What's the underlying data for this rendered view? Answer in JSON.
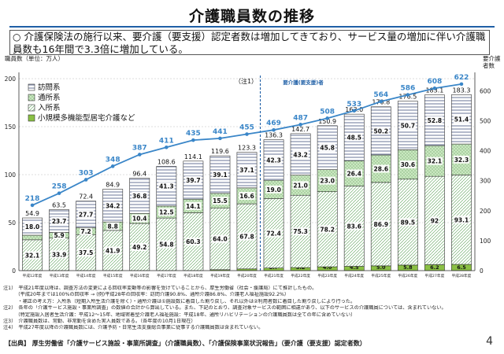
{
  "title": "介護職員数の推移",
  "summary": {
    "marker": "○",
    "text": "介護保険法の施行以来、要介護（要支援）認定者数は増加してきており、サービス量の増加に伴い介護職員数も16年間で3.3倍に増加している。"
  },
  "colors": {
    "accent": "#1f5fa6",
    "line": "#3a86c8",
    "visit": "#ffffff",
    "day": "#c9e8c0",
    "residential": "#ffffff",
    "small": "#8ac044"
  },
  "chart_data": {
    "type": "bar",
    "stacked": true,
    "title": "",
    "ylabel": "職員数（単位：万人）",
    "y2label": "要介護\n者数",
    "ylim": [
      0,
      200
    ],
    "yticks": [
      0,
      50,
      100,
      150,
      200
    ],
    "y2lim": [
      0,
      640
    ],
    "y2ticks": [
      0,
      100,
      200,
      300,
      400,
      500,
      600
    ],
    "grid": true,
    "legend_position": "top-left",
    "categories": [
      "平成12年度",
      "平成13年度",
      "平成14年度",
      "平成15年度",
      "平成16年度",
      "平成17年度",
      "平成18年度",
      "平成19年度",
      "平成20年度",
      "平成21年度",
      "平成22年度",
      "平成23年度",
      "平成24年度",
      "平成25年度",
      "平成26年度",
      "平成27年度",
      "平成28年度"
    ],
    "series": [
      {
        "name": "小規模多機能型居宅介護など",
        "key": "small",
        "values": [
          0,
          0,
          0,
          0,
          0,
          0,
          0,
          1.0,
          1.8,
          2.7,
          3.2,
          4.0,
          4.5,
          5.0,
          5.8,
          6.2,
          6.5
        ],
        "labels": [
          "",
          "",
          "",
          "",
          "",
          "",
          "",
          "1.0",
          "1.8",
          "2.7",
          "3.2",
          "4.0",
          "4.5",
          "5.0",
          "5.8",
          "6.2",
          "6.5"
        ]
      },
      {
        "name": "入所系",
        "key": "residential",
        "values": [
          32.1,
          33.9,
          37.5,
          41.9,
          49.2,
          54.8,
          60.3,
          64.0,
          67.8,
          72.4,
          75.3,
          78.2,
          83.6,
          86.9,
          89.5,
          92,
          93.1
        ],
        "labels": [
          "32.1",
          "33.9",
          "37.5",
          "41.9",
          "49.2",
          "54.8",
          "60.3",
          "64.0",
          "67.8",
          "72.4",
          "75.3",
          "78.2",
          "83.6",
          "86.9",
          "89.5",
          "92",
          "93.1"
        ]
      },
      {
        "name": "通所系",
        "key": "day",
        "values": [
          4.8,
          5.9,
          7.2,
          8.8,
          10.4,
          12.5,
          14.1,
          15.5,
          16.6,
          19.0,
          21.0,
          23.0,
          26.4,
          28.6,
          30.6,
          32.1,
          32.3
        ],
        "labels": [
          "4.8",
          "5.9",
          "7.2",
          "8.8",
          "10.4",
          "12.5",
          "14.1",
          "15.5",
          "16.6",
          "19.0",
          "21.0",
          "23.0",
          "26.4",
          "28.6",
          "30.6",
          "32.1",
          "32.3"
        ]
      },
      {
        "name": "訪問系",
        "key": "visit",
        "values": [
          18.0,
          23.7,
          27.7,
          34.2,
          36.8,
          41.3,
          39.7,
          39.1,
          37.1,
          42.3,
          43.2,
          45.8,
          48.5,
          50.2,
          50.7,
          52.8,
          51.4
        ],
        "labels": [
          "18.0",
          "23.7",
          "27.7",
          "34.2",
          "36.8",
          "41.3",
          "39.7",
          "39.1",
          "37.1",
          "42.3",
          "43.2",
          "45.8",
          "48.5",
          "50.2",
          "50.7",
          "52.8",
          "51.4"
        ]
      }
    ],
    "totals": [
      "54.9",
      "63.5",
      "72.4",
      "84.9",
      "96.4",
      "108.6",
      "114.1",
      "119.6",
      "123.3",
      "136.3",
      "142.7",
      "150.9",
      "163.0",
      "170.8",
      "176.5",
      "183.1",
      "183.3"
    ],
    "total_values": [
      54.9,
      63.5,
      72.4,
      84.9,
      96.4,
      108.6,
      114.1,
      119.6,
      123.3,
      136.3,
      142.7,
      150.9,
      163.0,
      170.8,
      176.5,
      183.1,
      183.3
    ],
    "line": {
      "name": "要介護（要支援）者数",
      "axis": "right",
      "values": [
        218,
        258,
        303,
        348,
        387,
        411,
        435,
        441,
        455,
        469,
        487,
        508,
        533,
        564,
        586,
        608,
        622
      ]
    },
    "legend": [
      "訪問系",
      "通所系",
      "入所系",
      "小規模多機能型居宅介護など"
    ],
    "annotations": {
      "note1": "（注1）",
      "line_label": "要介護(要支援)者",
      "break_after_index": 8
    }
  },
  "notes": [
    "注1）　平成21年度以降は、調査方法の変更による回収率変動等の影響を受けていることから、厚生労働省（社会・援護局）にて推計したもの。",
    "　　　（平成20年までは100%の回収率 → (例)平成28年の回収率：訪問介護90.8%、通所介護86.8%、介護老人福祉施設92.2%）",
    "　　　・補正の考え方：入所系（短期入所生活介護を除く）・通所介護は①施設数に着目した割り戻し、それ以外は②利用者数に着目した割り戻しにより行った。",
    "注2）　各年の「介護サービス施設・事業所調査」の数値の合計から算出している。また、下記のとおり、調査対象サービスの範囲に相違があり、以下のサービスの介護職員については、含まれていない。",
    "　　　（特定施設入居者生活介護：平成12〜15年、地域密着型介護老人福祉施設：平成18年、通所リハビリテーションの介護職員数は全ての年に含めていない）",
    "注3）　介護職員数は、常勤、非常勤を含めた実人員数である。（各年度の10月1日現在）",
    "注4）　平成27年度以降の介護職員数には、介護予防・日常生活支援総合事業に従事する介護職員数は含まれていない。"
  ],
  "source": "【出典】 厚生労働省「介護サービス施設・事業所調査」（介護職員数）、「介護保険事業状況報告」（要介護（要支援）認定者数）",
  "page_number": "4"
}
